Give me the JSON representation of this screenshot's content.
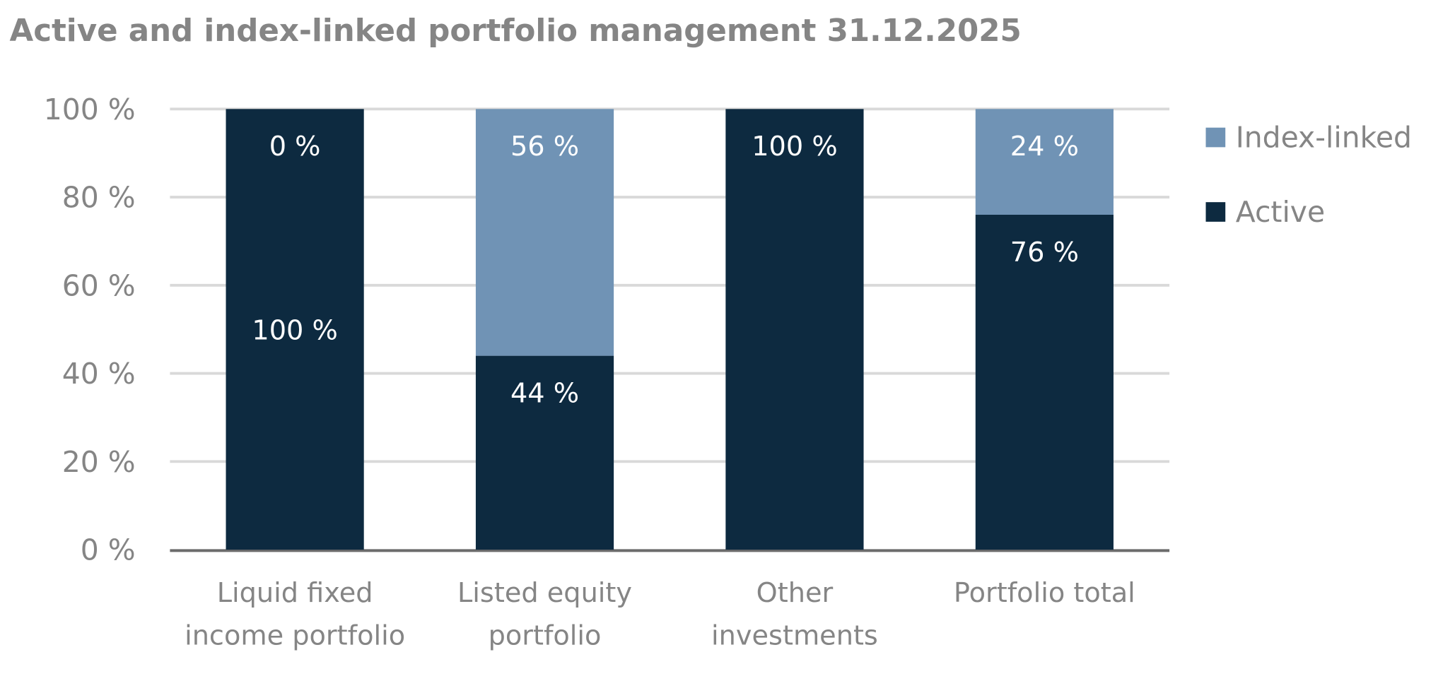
{
  "chart_data": {
    "type": "bar",
    "stacked": true,
    "title": "Active and index-linked portfolio management 31.12.2025",
    "xlabel": "",
    "ylabel": "",
    "ylim": [
      0,
      100
    ],
    "yticks": [
      "0 %",
      "20 %",
      "40 %",
      "60 %",
      "80 %",
      "100 %"
    ],
    "grid": true,
    "legend_position": "right",
    "categories": [
      [
        "Liquid fixed",
        "income portfolio"
      ],
      [
        "Listed equity",
        "portfolio"
      ],
      [
        "Other",
        "investments"
      ],
      [
        "Portfolio total"
      ]
    ],
    "series": [
      {
        "name": "Active",
        "color": "#0d2a40",
        "values": [
          100,
          44,
          100,
          76
        ],
        "labels": [
          "100 %",
          "44 %",
          "100 %",
          "76 %"
        ]
      },
      {
        "name": "Index-linked",
        "color": "#7093b5",
        "values": [
          0,
          56,
          0,
          24
        ],
        "labels": [
          "0 %",
          "56 %",
          null,
          "24 %"
        ]
      }
    ]
  }
}
